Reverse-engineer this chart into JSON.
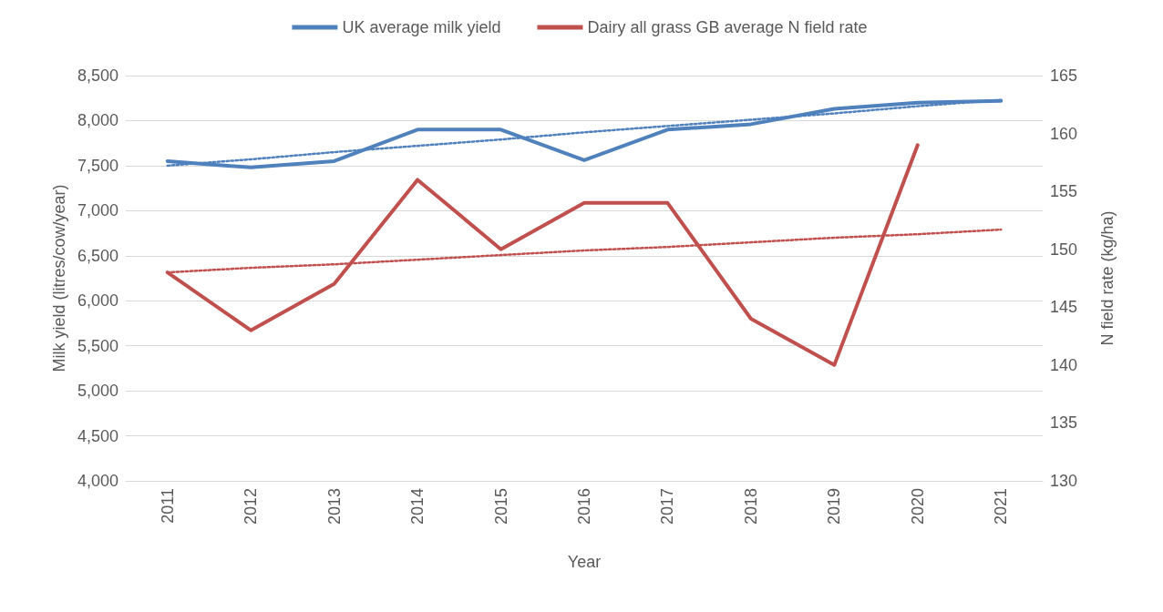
{
  "chart_data": {
    "type": "line",
    "xlabel": "Year",
    "ylabel": "Milk yield (litres/cow/year)",
    "y2label": "N field rate (kg/ha)",
    "categories": [
      "2011",
      "2012",
      "2013",
      "2014",
      "2015",
      "2016",
      "2017",
      "2018",
      "2019",
      "2020",
      "2021"
    ],
    "series": [
      {
        "name": "UK average milk yield",
        "color": "#4f81bd",
        "values": [
          7550,
          7480,
          7550,
          7900,
          7900,
          7560,
          7900,
          7960,
          8130,
          8200,
          8220
        ]
      },
      {
        "name": "Dairy all grass GB average N field rate",
        "color": "#c0504d",
        "axis": "y2",
        "values": [
          148,
          143,
          147,
          156,
          150,
          154,
          154,
          144,
          140,
          159,
          null
        ]
      },
      {
        "type": "line",
        "color": "#4f81bd",
        "line_style": "dotted",
        "values": [
          7500,
          7570,
          7650,
          7720,
          7790,
          7870,
          7940,
          8010,
          8080,
          8160,
          8230
        ]
      },
      {
        "type": "line",
        "color": "#c0504d",
        "line_style": "dotted",
        "axis": "y2",
        "values": [
          148,
          148.4,
          148.7,
          149.1,
          149.5,
          149.9,
          150.2,
          150.6,
          151,
          151.3,
          151.7
        ]
      }
    ],
    "ylim": [
      4000,
      8500
    ],
    "yticks": [
      {
        "value": 4000,
        "label": "4,000"
      },
      {
        "value": 4500,
        "label": "4,500"
      },
      {
        "value": 5000,
        "label": "5,000"
      },
      {
        "value": 5500,
        "label": "5,500"
      },
      {
        "value": 6000,
        "label": "6,000"
      },
      {
        "value": 6500,
        "label": "6,500"
      },
      {
        "value": 7000,
        "label": "7,000"
      },
      {
        "value": 7500,
        "label": "7,500"
      },
      {
        "value": 8000,
        "label": "8,000"
      },
      {
        "value": 8500,
        "label": "8,500"
      }
    ],
    "y2lim": [
      130,
      165
    ],
    "y2ticks": [
      130,
      135,
      140,
      145,
      150,
      155,
      160,
      165
    ],
    "grid": "y",
    "legend": "top",
    "marker": "none",
    "line_style": "solid"
  }
}
